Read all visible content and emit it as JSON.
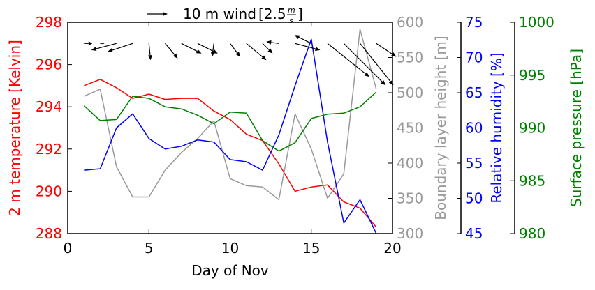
{
  "chart_data": {
    "type": "line",
    "xlabel": "Day of Nov",
    "xlim": [
      0,
      20
    ],
    "xticks": [
      0,
      5,
      10,
      15,
      20
    ],
    "wind_legend": {
      "label_prefix": "10 m wind",
      "scale_label": "[2.5",
      "scale_unit_num": "m",
      "scale_unit_den": "s",
      "scale_close": "]",
      "reference_speed": 2.5
    },
    "axes": [
      {
        "key": "temp",
        "label": "2 m temperature [Kelvin]",
        "color": "#ff0000",
        "side": "left",
        "ylim": [
          288,
          298
        ],
        "ticks": [
          288,
          290,
          292,
          294,
          296,
          298
        ]
      },
      {
        "key": "blh",
        "label": "Boundary layer height [m]",
        "color": "#999999",
        "side": "right",
        "ylim": [
          300,
          600
        ],
        "ticks": [
          300,
          350,
          400,
          450,
          500,
          550,
          600
        ]
      },
      {
        "key": "rh",
        "label": "Relative humidity [%]",
        "color": "#0000ff",
        "side": "right",
        "ylim": [
          45,
          75
        ],
        "ticks": [
          45,
          50,
          55,
          60,
          65,
          70,
          75
        ]
      },
      {
        "key": "sp",
        "label": "Surface pressure [hPa]",
        "color": "#008000",
        "side": "right",
        "ylim": [
          980,
          1000
        ],
        "ticks": [
          980,
          985,
          990,
          995,
          1000
        ]
      }
    ],
    "series": [
      {
        "axis": "temp",
        "color": "#ff0000",
        "x": [
          1,
          2,
          3,
          4,
          5,
          6,
          7,
          8,
          9,
          10,
          11,
          12,
          13,
          14,
          15,
          16,
          17,
          18,
          19
        ],
        "values": [
          295.0,
          295.3,
          294.9,
          294.4,
          294.6,
          294.35,
          294.4,
          294.4,
          293.8,
          293.4,
          292.7,
          292.4,
          291.3,
          290.0,
          290.2,
          290.3,
          289.5,
          289.2,
          288.3
        ]
      },
      {
        "axis": "blh",
        "color": "#999999",
        "x": [
          1,
          2,
          3,
          4,
          5,
          6,
          7,
          8,
          9,
          10,
          11,
          12,
          13,
          14,
          15,
          16,
          17,
          18,
          19
        ],
        "values": [
          495,
          505,
          395,
          352,
          352,
          390,
          415,
          435,
          460,
          378,
          368,
          366,
          348,
          470,
          420,
          350,
          385,
          590,
          505
        ]
      },
      {
        "axis": "rh",
        "color": "#0000ff",
        "x": [
          1,
          2,
          3,
          4,
          5,
          6,
          7,
          8,
          9,
          10,
          11,
          12,
          13,
          14,
          15,
          16,
          17,
          18,
          19
        ],
        "values": [
          54.0,
          54.2,
          60.0,
          62.0,
          58.5,
          57.0,
          57.4,
          58.3,
          58.0,
          55.5,
          55.2,
          54.0,
          59.0,
          66.0,
          72.6,
          58.0,
          46.5,
          49.8,
          45.0
        ]
      },
      {
        "axis": "sp",
        "color": "#008000",
        "x": [
          1,
          2,
          3,
          4,
          5,
          6,
          7,
          8,
          9,
          10,
          11,
          12,
          13,
          14,
          15,
          16,
          17,
          18,
          19
        ],
        "values": [
          992.1,
          990.7,
          990.8,
          993.0,
          992.8,
          992.0,
          991.8,
          991.2,
          990.4,
          991.5,
          991.4,
          988.8,
          987.8,
          988.6,
          990.9,
          991.3,
          991.4,
          992.0,
          993.4
        ]
      }
    ],
    "wind": {
      "y_temp": 297.0,
      "x": [
        1,
        2,
        3,
        4,
        5,
        6,
        7,
        8,
        9,
        10,
        11,
        12,
        13,
        14,
        15,
        16,
        17,
        18,
        19
      ],
      "u": [
        0.5,
        0.25,
        -1.5,
        -1.5,
        0.1,
        0.75,
        1.2,
        1.2,
        -0.1,
        0.6,
        1.2,
        0.6,
        -0.75,
        1.5,
        -1.0,
        2.5,
        2.5,
        2.0,
        1.2
      ],
      "v": [
        0.0,
        0.0,
        -0.4,
        -0.5,
        -1.0,
        -0.9,
        -0.6,
        -0.6,
        -0.8,
        -0.8,
        -1.0,
        -0.6,
        0.1,
        -0.4,
        0.5,
        -2.0,
        -2.5,
        -2.5,
        -0.8
      ]
    }
  }
}
